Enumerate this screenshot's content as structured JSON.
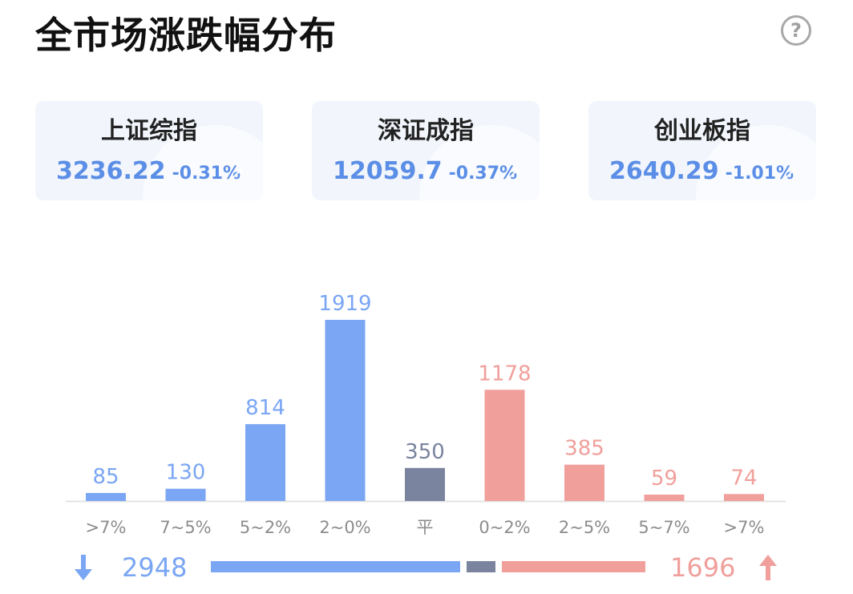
{
  "header": {
    "title": "全市场涨跌幅分布",
    "help_glyph": "?"
  },
  "indices": [
    {
      "name": "上证综指",
      "value": "3236.22",
      "change": "-0.31%"
    },
    {
      "name": "深证成指",
      "value": "12059.7",
      "change": "-0.37%"
    },
    {
      "name": "创业板指",
      "value": "2640.29",
      "change": "-1.01%"
    }
  ],
  "colors": {
    "down": "#7aa6f3",
    "flat": "#7a849e",
    "up": "#f09f9b",
    "axis": "#e3e3e3",
    "tick": "#8c8c8c"
  },
  "chart_data": {
    "type": "bar",
    "categories": [
      ">7%",
      "7~5%",
      "5~2%",
      "2~0%",
      "平",
      "0~2%",
      "2~5%",
      "5~7%",
      ">7%"
    ],
    "values": [
      85,
      130,
      814,
      1919,
      350,
      1178,
      385,
      59,
      74
    ],
    "groups": [
      "down",
      "down",
      "down",
      "down",
      "flat",
      "up",
      "up",
      "up",
      "up"
    ],
    "ylim": [
      0,
      1919
    ]
  },
  "summary": {
    "down_total": "2948",
    "up_total": "1696",
    "flat_total": 350
  }
}
